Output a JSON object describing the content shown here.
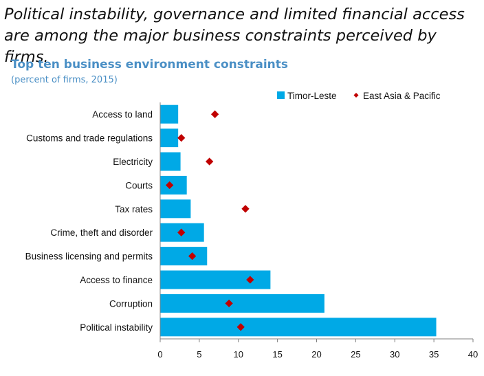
{
  "headline": "Political instability, governance and limited financial access are among the major business constraints perceived by firms.",
  "chart_data": {
    "type": "bar",
    "orientation": "horizontal",
    "title": "Top ten business environment constraints",
    "subtitle": "(percent of firms, 2015)",
    "categories": [
      "Access to land",
      "Customs and trade regulations",
      "Electricity",
      "Courts",
      "Tax rates",
      "Crime, theft and disorder",
      "Business licensing and permits",
      "Access to finance",
      "Corruption",
      "Political instability"
    ],
    "series": [
      {
        "name": "Timor-Leste",
        "mark": "bar",
        "color": "#00a9e6",
        "values": [
          2.3,
          2.3,
          2.6,
          3.4,
          3.9,
          5.6,
          6.0,
          14.1,
          21.0,
          35.3
        ]
      },
      {
        "name": "East Asia & Pacific",
        "mark": "diamond",
        "color": "#c00000",
        "values": [
          7.0,
          2.7,
          6.3,
          1.2,
          10.9,
          2.7,
          4.1,
          11.5,
          8.8,
          10.3
        ]
      }
    ],
    "xlim": [
      0,
      40
    ],
    "xticks": [
      0,
      5,
      10,
      15,
      20,
      25,
      30,
      35,
      40
    ],
    "grid": false,
    "legend_position": "top-right"
  }
}
